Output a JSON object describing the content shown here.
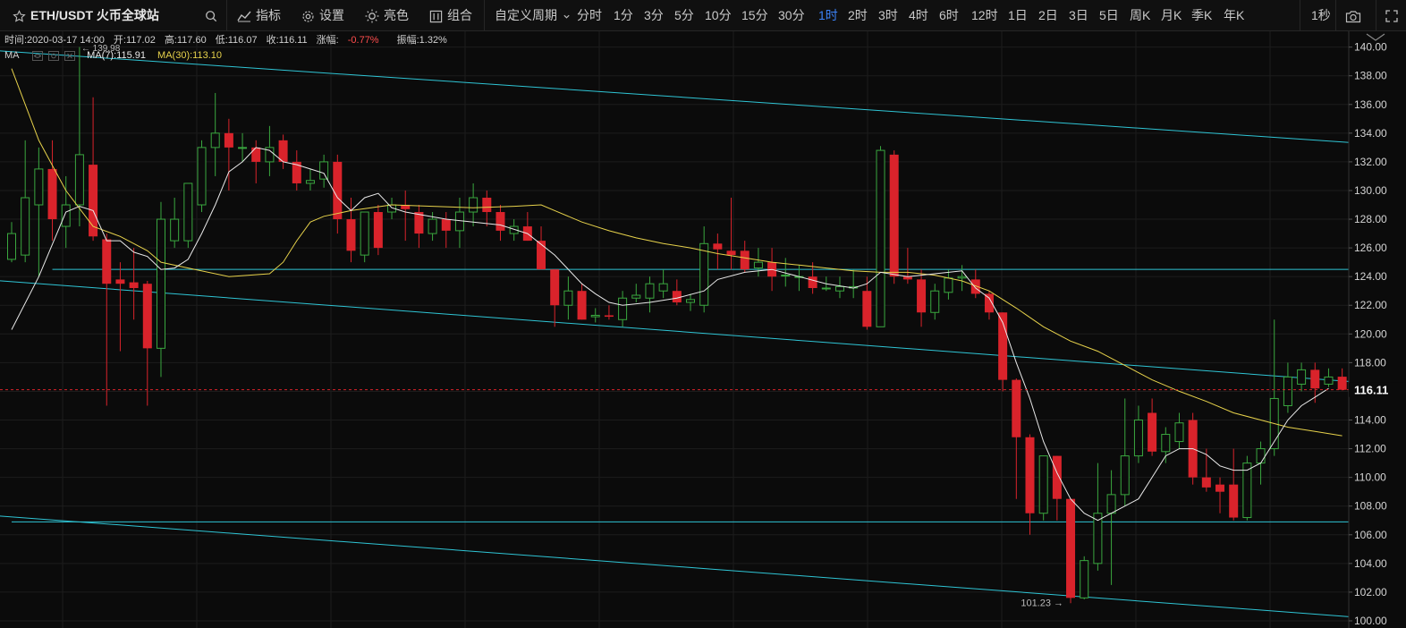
{
  "toolbar": {
    "symbol": "ETH/USDT 火币全球站",
    "indicator_label": "指标",
    "settings_label": "设置",
    "theme_label": "亮色",
    "combo_label": "组合",
    "custom_period_label": "自定义周期",
    "periods": [
      "分时",
      "1分",
      "3分",
      "5分",
      "10分",
      "15分",
      "30分",
      "1时",
      "2时",
      "3时",
      "4时",
      "6时",
      "12时",
      "1日",
      "2日",
      "3日",
      "5日",
      "周K",
      "月K",
      "季K",
      "年K"
    ],
    "active_period": "1时",
    "refresh_label": "1秒"
  },
  "info": {
    "time": "时间:2020-03-17 14:00",
    "open": "开:117.02",
    "high": "高:117.60",
    "low": "低:116.07",
    "close": "收:116.11",
    "change_label": "涨幅:",
    "change_value": "-0.77%",
    "amplitude": "振幅:1.32%"
  },
  "ma_line": {
    "label": "MA",
    "ma7": "MA(7):115.91",
    "ma30": "MA(30):113.10",
    "ma7_color": "#e9e9e9",
    "ma30_color": "#e7d24b"
  },
  "chart_data": {
    "type": "candlestick",
    "ylim": [
      99.5,
      141.1
    ],
    "y_ticks": [
      "100.00",
      "102.00",
      "104.00",
      "106.00",
      "108.00",
      "110.00",
      "112.00",
      "114.00",
      "116.00",
      "118.00",
      "120.00",
      "122.00",
      "124.00",
      "126.00",
      "128.00",
      "130.00",
      "132.00",
      "134.00",
      "136.00",
      "138.00",
      "140.00"
    ],
    "last_price": "116.11",
    "last_price_value": 116.11,
    "max_label": "139.98",
    "max_value": 139.98,
    "min_label": "101.23",
    "min_value": 101.23,
    "up_color": "#3aa73f",
    "down_color": "#d9232b",
    "line_color": "#2fc5d5",
    "candles": [
      {
        "o": 125.2,
        "h": 127.8,
        "l": 125.0,
        "c": 127.0
      },
      {
        "o": 125.5,
        "h": 133.5,
        "l": 125.0,
        "c": 129.5
      },
      {
        "o": 129.0,
        "h": 133.0,
        "l": 124.0,
        "c": 131.5
      },
      {
        "o": 131.5,
        "h": 133.5,
        "l": 126.5,
        "c": 128.0
      },
      {
        "o": 127.5,
        "h": 131.0,
        "l": 126.0,
        "c": 129.0
      },
      {
        "o": 129.0,
        "h": 140.0,
        "l": 127.5,
        "c": 132.5
      },
      {
        "o": 131.8,
        "h": 136.5,
        "l": 126.5,
        "c": 126.8
      },
      {
        "o": 126.6,
        "h": 127.0,
        "l": 115.0,
        "c": 123.5
      },
      {
        "o": 123.8,
        "h": 125.0,
        "l": 118.8,
        "c": 123.5
      },
      {
        "o": 123.6,
        "h": 126.0,
        "l": 121.0,
        "c": 123.2
      },
      {
        "o": 123.5,
        "h": 123.7,
        "l": 115.0,
        "c": 119.0
      },
      {
        "o": 119.0,
        "h": 129.2,
        "l": 117.0,
        "c": 128.0
      },
      {
        "o": 126.5,
        "h": 129.5,
        "l": 126.0,
        "c": 128.0
      },
      {
        "o": 126.5,
        "h": 130.5,
        "l": 126.0,
        "c": 130.5
      },
      {
        "o": 129.0,
        "h": 133.5,
        "l": 128.5,
        "c": 133.0
      },
      {
        "o": 133.0,
        "h": 136.8,
        "l": 131.0,
        "c": 134.0
      },
      {
        "o": 134.0,
        "h": 135.0,
        "l": 130.0,
        "c": 133.0
      },
      {
        "o": 133.0,
        "h": 134.0,
        "l": 132.0,
        "c": 133.0
      },
      {
        "o": 133.0,
        "h": 133.5,
        "l": 130.5,
        "c": 132.0
      },
      {
        "o": 132.0,
        "h": 134.5,
        "l": 131.0,
        "c": 133.0
      },
      {
        "o": 133.5,
        "h": 133.9,
        "l": 131.5,
        "c": 132.0
      },
      {
        "o": 132.0,
        "h": 132.8,
        "l": 130.0,
        "c": 130.5
      },
      {
        "o": 130.5,
        "h": 131.5,
        "l": 130.0,
        "c": 130.7
      },
      {
        "o": 130.8,
        "h": 132.5,
        "l": 130.2,
        "c": 132.0
      },
      {
        "o": 132.0,
        "h": 132.5,
        "l": 127.0,
        "c": 128.0
      },
      {
        "o": 128.0,
        "h": 129.5,
        "l": 125.0,
        "c": 125.8
      },
      {
        "o": 125.5,
        "h": 128.5,
        "l": 125.0,
        "c": 128.5
      },
      {
        "o": 128.5,
        "h": 129.0,
        "l": 125.5,
        "c": 126.0
      },
      {
        "o": 128.5,
        "h": 129.5,
        "l": 128.0,
        "c": 129.0
      },
      {
        "o": 129.0,
        "h": 130.0,
        "l": 126.5,
        "c": 128.7
      },
      {
        "o": 128.5,
        "h": 129.0,
        "l": 126.0,
        "c": 127.0
      },
      {
        "o": 127.0,
        "h": 128.5,
        "l": 126.5,
        "c": 128.0
      },
      {
        "o": 128.0,
        "h": 128.5,
        "l": 126.0,
        "c": 127.2
      },
      {
        "o": 127.2,
        "h": 129.5,
        "l": 126.0,
        "c": 128.5
      },
      {
        "o": 128.5,
        "h": 130.5,
        "l": 127.5,
        "c": 129.5
      },
      {
        "o": 129.5,
        "h": 130.0,
        "l": 127.5,
        "c": 128.5
      },
      {
        "o": 128.5,
        "h": 129.0,
        "l": 126.5,
        "c": 127.2
      },
      {
        "o": 127.0,
        "h": 128.0,
        "l": 126.5,
        "c": 127.5
      },
      {
        "o": 127.5,
        "h": 128.5,
        "l": 126.5,
        "c": 126.5
      },
      {
        "o": 126.5,
        "h": 127.5,
        "l": 124.5,
        "c": 124.5
      },
      {
        "o": 124.5,
        "h": 124.5,
        "l": 120.5,
        "c": 122.0
      },
      {
        "o": 122.0,
        "h": 124.0,
        "l": 121.0,
        "c": 123.0
      },
      {
        "o": 123.0,
        "h": 123.5,
        "l": 121.0,
        "c": 121.0
      },
      {
        "o": 121.2,
        "h": 121.8,
        "l": 120.8,
        "c": 121.3
      },
      {
        "o": 121.3,
        "h": 122.0,
        "l": 121.0,
        "c": 121.2
      },
      {
        "o": 121.0,
        "h": 123.0,
        "l": 120.5,
        "c": 122.5
      },
      {
        "o": 122.5,
        "h": 123.5,
        "l": 122.2,
        "c": 122.7
      },
      {
        "o": 122.5,
        "h": 124.0,
        "l": 121.5,
        "c": 123.5
      },
      {
        "o": 123.0,
        "h": 124.5,
        "l": 122.5,
        "c": 123.5
      },
      {
        "o": 123.0,
        "h": 123.8,
        "l": 122.0,
        "c": 122.2
      },
      {
        "o": 122.2,
        "h": 122.8,
        "l": 121.6,
        "c": 122.4
      },
      {
        "o": 122.0,
        "h": 127.5,
        "l": 121.5,
        "c": 126.3
      },
      {
        "o": 126.3,
        "h": 127.0,
        "l": 124.5,
        "c": 125.9
      },
      {
        "o": 125.8,
        "h": 129.5,
        "l": 124.5,
        "c": 125.5
      },
      {
        "o": 125.8,
        "h": 126.5,
        "l": 124.3,
        "c": 124.5
      },
      {
        "o": 124.6,
        "h": 126.0,
        "l": 124.0,
        "c": 125.0
      },
      {
        "o": 125.0,
        "h": 126.0,
        "l": 123.0,
        "c": 124.0
      },
      {
        "o": 124.1,
        "h": 125.3,
        "l": 123.3,
        "c": 124.1
      },
      {
        "o": 124.0,
        "h": 124.8,
        "l": 123.0,
        "c": 124.0
      },
      {
        "o": 124.0,
        "h": 125.0,
        "l": 122.8,
        "c": 123.2
      },
      {
        "o": 123.2,
        "h": 124.0,
        "l": 123.0,
        "c": 123.2
      },
      {
        "o": 123.0,
        "h": 124.0,
        "l": 122.5,
        "c": 123.3
      },
      {
        "o": 123.2,
        "h": 124.5,
        "l": 122.5,
        "c": 123.3
      },
      {
        "o": 123.0,
        "h": 124.0,
        "l": 120.3,
        "c": 120.5
      },
      {
        "o": 120.5,
        "h": 133.1,
        "l": 120.5,
        "c": 132.8
      },
      {
        "o": 132.5,
        "h": 132.8,
        "l": 123.5,
        "c": 124.0
      },
      {
        "o": 124.0,
        "h": 126.0,
        "l": 123.5,
        "c": 123.8
      },
      {
        "o": 123.8,
        "h": 124.5,
        "l": 120.5,
        "c": 121.5
      },
      {
        "o": 121.5,
        "h": 123.5,
        "l": 121.0,
        "c": 123.0
      },
      {
        "o": 122.9,
        "h": 124.5,
        "l": 122.4,
        "c": 123.9
      },
      {
        "o": 123.9,
        "h": 124.8,
        "l": 123.0,
        "c": 124.0
      },
      {
        "o": 123.8,
        "h": 124.5,
        "l": 122.5,
        "c": 122.8
      },
      {
        "o": 122.8,
        "h": 123.0,
        "l": 121.0,
        "c": 121.5
      },
      {
        "o": 121.5,
        "h": 121.5,
        "l": 116.0,
        "c": 116.8
      },
      {
        "o": 116.8,
        "h": 116.9,
        "l": 108.5,
        "c": 112.8
      },
      {
        "o": 112.8,
        "h": 113.0,
        "l": 106.0,
        "c": 107.5
      },
      {
        "o": 107.5,
        "h": 111.5,
        "l": 107.0,
        "c": 111.5
      },
      {
        "o": 111.5,
        "h": 111.5,
        "l": 107.0,
        "c": 108.5
      },
      {
        "o": 108.5,
        "h": 108.5,
        "l": 101.23,
        "c": 101.6
      },
      {
        "o": 101.6,
        "h": 104.5,
        "l": 101.5,
        "c": 104.2
      },
      {
        "o": 104.0,
        "h": 111.0,
        "l": 103.5,
        "c": 107.5
      },
      {
        "o": 107.5,
        "h": 110.5,
        "l": 102.5,
        "c": 108.8
      },
      {
        "o": 108.8,
        "h": 115.5,
        "l": 108.0,
        "c": 111.5
      },
      {
        "o": 111.5,
        "h": 115.0,
        "l": 111.0,
        "c": 114.0
      },
      {
        "o": 114.5,
        "h": 115.5,
        "l": 111.5,
        "c": 111.8
      },
      {
        "o": 111.8,
        "h": 113.5,
        "l": 111.0,
        "c": 113.0
      },
      {
        "o": 112.5,
        "h": 114.5,
        "l": 112.0,
        "c": 113.8
      },
      {
        "o": 114.0,
        "h": 114.5,
        "l": 109.5,
        "c": 110.0
      },
      {
        "o": 110.0,
        "h": 112.0,
        "l": 109.0,
        "c": 109.3
      },
      {
        "o": 109.5,
        "h": 110.0,
        "l": 107.5,
        "c": 109.0
      },
      {
        "o": 109.5,
        "h": 112.0,
        "l": 107.0,
        "c": 107.2
      },
      {
        "o": 107.2,
        "h": 111.5,
        "l": 107.0,
        "c": 111.0
      },
      {
        "o": 111.0,
        "h": 112.5,
        "l": 109.5,
        "c": 112.0
      },
      {
        "o": 112.0,
        "h": 121.0,
        "l": 111.5,
        "c": 115.5
      },
      {
        "o": 115.0,
        "h": 118.0,
        "l": 114.5,
        "c": 117.0
      },
      {
        "o": 116.5,
        "h": 118.0,
        "l": 116.0,
        "c": 117.5
      },
      {
        "o": 117.5,
        "h": 118.0,
        "l": 115.2,
        "c": 116.2
      },
      {
        "o": 116.5,
        "h": 117.6,
        "l": 116.3,
        "c": 117.0
      },
      {
        "o": 117.02,
        "h": 117.6,
        "l": 116.07,
        "c": 116.11
      }
    ],
    "ma7": [
      {
        "i": 0,
        "v": 120.3
      },
      {
        "i": 2,
        "v": 124.0
      },
      {
        "i": 4,
        "v": 128.5
      },
      {
        "i": 5,
        "v": 128.9
      },
      {
        "i": 6,
        "v": 128.6
      },
      {
        "i": 7,
        "v": 126.5
      },
      {
        "i": 8,
        "v": 126.5
      },
      {
        "i": 9,
        "v": 125.7
      },
      {
        "i": 10,
        "v": 125.4
      },
      {
        "i": 11,
        "v": 124.5
      },
      {
        "i": 12,
        "v": 124.6
      },
      {
        "i": 13,
        "v": 125.2
      },
      {
        "i": 14,
        "v": 127.0
      },
      {
        "i": 15,
        "v": 129.0
      },
      {
        "i": 16,
        "v": 131.3
      },
      {
        "i": 17,
        "v": 132.0
      },
      {
        "i": 18,
        "v": 133.0
      },
      {
        "i": 19,
        "v": 132.8
      },
      {
        "i": 20,
        "v": 132.0
      },
      {
        "i": 21,
        "v": 131.8
      },
      {
        "i": 22,
        "v": 131.5
      },
      {
        "i": 23,
        "v": 131.2
      },
      {
        "i": 24,
        "v": 129.5
      },
      {
        "i": 25,
        "v": 128.6
      },
      {
        "i": 26,
        "v": 129.5
      },
      {
        "i": 27,
        "v": 129.8
      },
      {
        "i": 28,
        "v": 128.8
      },
      {
        "i": 29,
        "v": 128.5
      },
      {
        "i": 32,
        "v": 128.0
      },
      {
        "i": 34,
        "v": 127.8
      },
      {
        "i": 36,
        "v": 127.6
      },
      {
        "i": 38,
        "v": 127.0
      },
      {
        "i": 40,
        "v": 125.5
      },
      {
        "i": 42,
        "v": 123.5
      },
      {
        "i": 43,
        "v": 122.8
      },
      {
        "i": 44,
        "v": 122.2
      },
      {
        "i": 45,
        "v": 122.0
      },
      {
        "i": 47,
        "v": 122.2
      },
      {
        "i": 49,
        "v": 122.5
      },
      {
        "i": 51,
        "v": 123.0
      },
      {
        "i": 52,
        "v": 123.8
      },
      {
        "i": 54,
        "v": 124.3
      },
      {
        "i": 56,
        "v": 124.5
      },
      {
        "i": 58,
        "v": 124.0
      },
      {
        "i": 60,
        "v": 123.5
      },
      {
        "i": 62,
        "v": 123.2
      },
      {
        "i": 63,
        "v": 123.5
      },
      {
        "i": 64,
        "v": 124.3
      },
      {
        "i": 66,
        "v": 124.0
      },
      {
        "i": 68,
        "v": 124.2
      },
      {
        "i": 70,
        "v": 124.4
      },
      {
        "i": 71,
        "v": 123.2
      },
      {
        "i": 72,
        "v": 122.5
      },
      {
        "i": 73,
        "v": 120.8
      },
      {
        "i": 74,
        "v": 118.0
      },
      {
        "i": 75,
        "v": 115.5
      },
      {
        "i": 76,
        "v": 112.5
      },
      {
        "i": 77,
        "v": 110.3
      },
      {
        "i": 78,
        "v": 108.5
      },
      {
        "i": 79,
        "v": 107.5
      },
      {
        "i": 80,
        "v": 107.0
      },
      {
        "i": 81,
        "v": 107.5
      },
      {
        "i": 83,
        "v": 108.5
      },
      {
        "i": 84,
        "v": 110.0
      },
      {
        "i": 85,
        "v": 111.5
      },
      {
        "i": 86,
        "v": 112.0
      },
      {
        "i": 87,
        "v": 112.0
      },
      {
        "i": 88,
        "v": 111.6
      },
      {
        "i": 89,
        "v": 110.8
      },
      {
        "i": 90,
        "v": 110.5
      },
      {
        "i": 91,
        "v": 110.5
      },
      {
        "i": 92,
        "v": 111.0
      },
      {
        "i": 93,
        "v": 112.5
      },
      {
        "i": 94,
        "v": 114.0
      },
      {
        "i": 95,
        "v": 115.0
      },
      {
        "i": 96,
        "v": 115.6
      },
      {
        "i": 97,
        "v": 116.2
      }
    ],
    "ma30": [
      {
        "i": 0,
        "v": 138.5
      },
      {
        "i": 2,
        "v": 133.5
      },
      {
        "i": 4,
        "v": 130.0
      },
      {
        "i": 6,
        "v": 127.5
      },
      {
        "i": 8,
        "v": 126.8
      },
      {
        "i": 10,
        "v": 125.8
      },
      {
        "i": 11,
        "v": 125.0
      },
      {
        "i": 13,
        "v": 124.6
      },
      {
        "i": 16,
        "v": 124.0
      },
      {
        "i": 19,
        "v": 124.2
      },
      {
        "i": 20,
        "v": 125.0
      },
      {
        "i": 21,
        "v": 126.5
      },
      {
        "i": 22,
        "v": 127.8
      },
      {
        "i": 23,
        "v": 128.2
      },
      {
        "i": 25,
        "v": 128.6
      },
      {
        "i": 28,
        "v": 129.0
      },
      {
        "i": 31,
        "v": 128.9
      },
      {
        "i": 34,
        "v": 128.8
      },
      {
        "i": 37,
        "v": 128.9
      },
      {
        "i": 39,
        "v": 129.0
      },
      {
        "i": 40,
        "v": 128.6
      },
      {
        "i": 42,
        "v": 127.8
      },
      {
        "i": 44,
        "v": 127.2
      },
      {
        "i": 46,
        "v": 126.7
      },
      {
        "i": 48,
        "v": 126.3
      },
      {
        "i": 50,
        "v": 126.0
      },
      {
        "i": 52,
        "v": 125.6
      },
      {
        "i": 54,
        "v": 125.3
      },
      {
        "i": 56,
        "v": 125.0
      },
      {
        "i": 58,
        "v": 124.8
      },
      {
        "i": 60,
        "v": 124.6
      },
      {
        "i": 62,
        "v": 124.4
      },
      {
        "i": 64,
        "v": 124.3
      },
      {
        "i": 66,
        "v": 124.3
      },
      {
        "i": 68,
        "v": 124.1
      },
      {
        "i": 70,
        "v": 123.7
      },
      {
        "i": 72,
        "v": 123.0
      },
      {
        "i": 74,
        "v": 121.8
      },
      {
        "i": 76,
        "v": 120.5
      },
      {
        "i": 78,
        "v": 119.5
      },
      {
        "i": 80,
        "v": 118.8
      },
      {
        "i": 82,
        "v": 117.8
      },
      {
        "i": 84,
        "v": 116.8
      },
      {
        "i": 86,
        "v": 116.0
      },
      {
        "i": 88,
        "v": 115.3
      },
      {
        "i": 90,
        "v": 114.5
      },
      {
        "i": 92,
        "v": 114.0
      },
      {
        "i": 94,
        "v": 113.5
      },
      {
        "i": 96,
        "v": 113.2
      },
      {
        "i": 98,
        "v": 112.9
      }
    ],
    "trendlines": [
      {
        "x1": -5,
        "y1": 140.0,
        "x2": 104,
        "y2": 133.0
      },
      {
        "x1": -5,
        "y1": 124.0,
        "x2": 104,
        "y2": 116.3
      },
      {
        "x1": 3,
        "y1": 124.5,
        "x2": 104,
        "y2": 124.5
      },
      {
        "x1": 0,
        "y1": 106.9,
        "x2": 104,
        "y2": 106.9
      },
      {
        "x1": -5,
        "y1": 107.6,
        "x2": 104,
        "y2": 99.9
      }
    ]
  }
}
